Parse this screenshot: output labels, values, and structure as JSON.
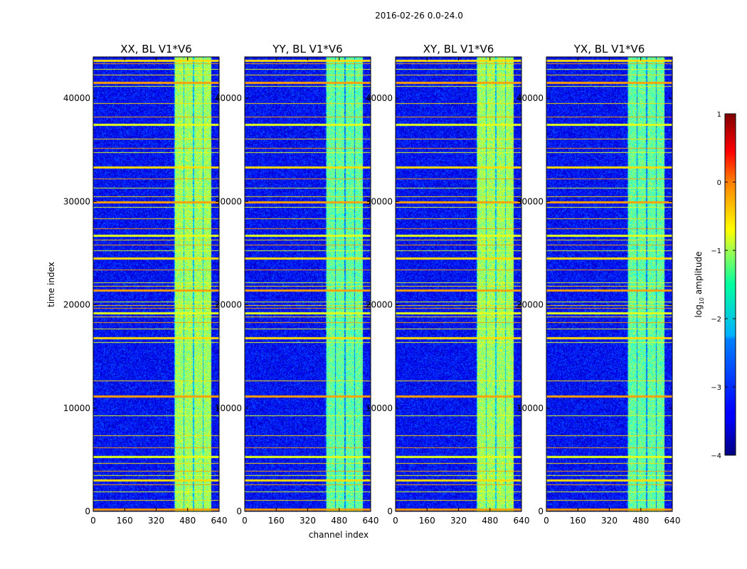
{
  "figure": {
    "title": "2016-02-26 0.0-24.0",
    "xlabel": "channel index",
    "ylabel": "time index"
  },
  "colorbar": {
    "label_prefix": "log",
    "label_sub": "10",
    "label_suffix": " amplitude",
    "range": [
      -4,
      1
    ],
    "ticks": [
      1,
      0,
      -1,
      -2,
      -3,
      -4
    ],
    "tick_labels": [
      "1",
      "0",
      "−1",
      "−2",
      "−3",
      "−4"
    ],
    "colormap": "jet"
  },
  "chart_data": {
    "type": "heatmap",
    "title": "2016-02-26 0.0-24.0",
    "xlabel": "channel index",
    "ylabel": "time index",
    "xlim": [
      0,
      640
    ],
    "ylim": [
      0,
      44000
    ],
    "x_ticks": [
      0,
      160,
      320,
      480,
      640
    ],
    "x_tick_labels": [
      "0",
      "160",
      "320",
      "480",
      "640"
    ],
    "y_ticks": [
      0,
      10000,
      20000,
      30000,
      40000
    ],
    "y_tick_labels": [
      "0",
      "10000",
      "20000",
      "30000",
      "40000"
    ],
    "value_range": [
      -4,
      1
    ],
    "panels": [
      {
        "name": "XX, BL V1*V6"
      },
      {
        "name": "YY, BL V1*V6"
      },
      {
        "name": "XY, BL V1*V6"
      },
      {
        "name": "YX, BL V1*V6"
      }
    ],
    "rfi_band_channels": [
      410,
      600
    ],
    "strong_bursts_time": [
      10500,
      12500
    ]
  }
}
